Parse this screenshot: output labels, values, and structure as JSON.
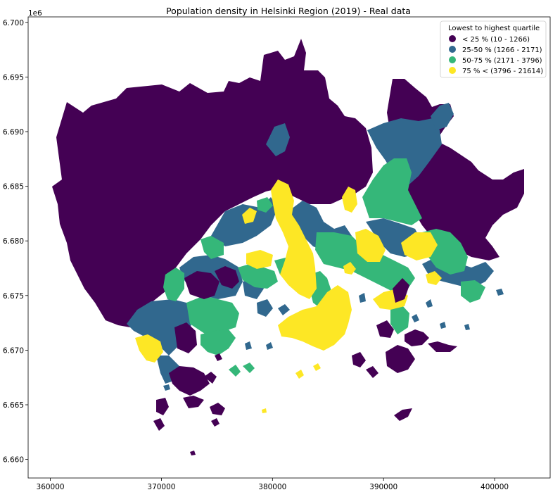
{
  "chart_data": {
    "type": "choropleth",
    "title": "Population density in Helsinki Region (2019) - Real data",
    "y_offset_label": "1e6",
    "x_ticks": [
      360000,
      370000,
      380000,
      390000,
      400000
    ],
    "x_tick_labels": [
      "360000",
      "370000",
      "380000",
      "390000",
      "400000"
    ],
    "y_ticks": [
      6.66,
      6.665,
      6.67,
      6.675,
      6.68,
      6.685,
      6.69,
      6.695,
      6.7
    ],
    "y_tick_labels": [
      "6.660",
      "6.665",
      "6.670",
      "6.675",
      "6.680",
      "6.685",
      "6.690",
      "6.695",
      "6.700"
    ],
    "xlim": [
      358000,
      405000
    ],
    "ylim": [
      6.6583,
      6.7005
    ],
    "legend": {
      "title": "Lowest to highest quartile",
      "placement": "top-right",
      "entries": [
        {
          "label": "< 25 % (10 - 1266)",
          "color": "#440154"
        },
        {
          "label": "25-50 % (1266 - 2171)",
          "color": "#31688e"
        },
        {
          "label": "50-75 % (2171 - 3796)",
          "color": "#35b779"
        },
        {
          "label": "75 % < (3796 - 21614)",
          "color": "#fde725"
        }
      ]
    },
    "colors": {
      "q1": "#440154",
      "q2": "#31688e",
      "q3": "#35b779",
      "q4": "#fde725"
    }
  }
}
